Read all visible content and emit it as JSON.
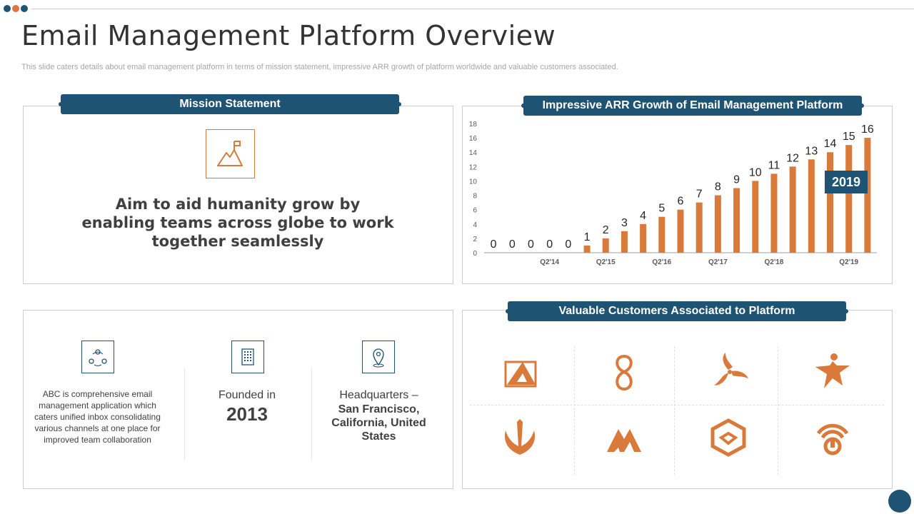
{
  "slide": {
    "title": "Email Management Platform Overview",
    "subtitle": "This slide caters details about email management platform in terms of mission statement, impressive ARR growth of platform worldwide and valuable customers associated."
  },
  "colors": {
    "accent": "#d97a3a",
    "primary": "#1f5373",
    "dot_blue": "#1f5373",
    "dot_orange": "#e0743a"
  },
  "mission": {
    "header": "Mission Statement",
    "icon": "mountain-flag-icon",
    "text": "Aim to aid humanity grow by enabling teams across globe to work together seamlessly"
  },
  "arr": {
    "header": "Impressive ARR Growth of Email Management Platform",
    "highlight_label": "2019"
  },
  "chart_data": {
    "type": "bar",
    "title": "Impressive ARR Growth of Email Management Platform",
    "ylim": [
      0,
      18
    ],
    "yticks": [
      "0",
      "2",
      "4",
      "6",
      "8",
      "10",
      "12",
      "14",
      "16",
      "18"
    ],
    "xticks": [
      "Q2'14",
      "Q2'15",
      "Q2'16",
      "Q2'17",
      "Q2'18",
      "Q2'19"
    ],
    "values": [
      0,
      0,
      0,
      0,
      0,
      1,
      2,
      3,
      4,
      5,
      6,
      7,
      8,
      9,
      10,
      11,
      12,
      13,
      14,
      15,
      16
    ],
    "data_labels": [
      "0",
      "0",
      "0",
      "0",
      "0",
      "1",
      "2",
      "3",
      "4",
      "5",
      "6",
      "7",
      "8",
      "9",
      "10",
      "11",
      "12",
      "13",
      "14",
      "15",
      "16"
    ],
    "bar_color": "#d97a3a",
    "grid": false
  },
  "company": {
    "about": "ABC is comprehensive email management application which caters unified inbox consolidating various channels at one place for improved team collaboration",
    "founded_label": "Founded in",
    "founded_year": "2013",
    "hq_label": "Headquarters –",
    "hq_value": "San Francisco, California, United States",
    "icons": [
      "team-cycle-icon",
      "building-icon",
      "location-pin-icon"
    ]
  },
  "customers": {
    "header": "Valuable Customers Associated to Platform",
    "logos": [
      "triangle-logo-icon",
      "swirl-eight-logo-icon",
      "triskelion-logo-icon",
      "star-person-logo-icon",
      "wing-shield-logo-icon",
      "mountain-m-logo-icon",
      "hexagon-logo-icon",
      "power-signal-logo-icon"
    ]
  }
}
